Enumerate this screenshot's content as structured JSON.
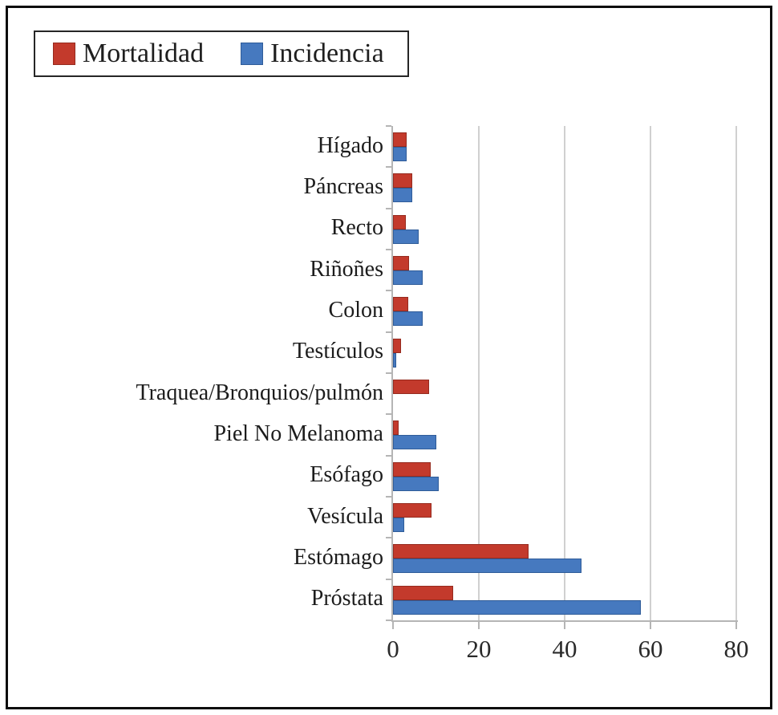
{
  "legend": {
    "items": [
      {
        "label": "Mortalidad",
        "color": "#c33a2c",
        "border": "#962b1f"
      },
      {
        "label": "Incidencia",
        "color": "#4679bf",
        "border": "#2f5c99"
      }
    ]
  },
  "chart_data": {
    "type": "bar",
    "orientation": "horizontal",
    "title": "",
    "xlabel": "",
    "ylabel": "",
    "xlim": [
      0,
      80
    ],
    "x_ticks": [
      0,
      20,
      40,
      60,
      80
    ],
    "grid": true,
    "legend_position": "top-left",
    "categories": [
      "Hígado",
      "Páncreas",
      "Recto",
      "Riñoñes",
      "Colon",
      "Testículos",
      "Traquea/Bronquios/pulmón",
      "Piel No Melanoma",
      "Esófago",
      "Vesícula",
      "Estómago",
      "Próstata"
    ],
    "series": [
      {
        "name": "Mortalidad",
        "color": "#c33a2c",
        "border": "#962b1f",
        "values": [
          3.2,
          4.5,
          3.0,
          3.8,
          3.6,
          1.8,
          8.4,
          1.4,
          8.7,
          9.0,
          31.5,
          14.0
        ]
      },
      {
        "name": "Incidencia",
        "color": "#4679bf",
        "border": "#2f5c99",
        "values": [
          3.2,
          4.5,
          6.0,
          7.0,
          7.0,
          0.7,
          0,
          10.0,
          10.6,
          2.7,
          44.0,
          57.8
        ]
      }
    ]
  },
  "colors": {
    "frame": "#0c0c0c",
    "axis": "#b5b5b5",
    "gridline": "#d0d0d0"
  }
}
